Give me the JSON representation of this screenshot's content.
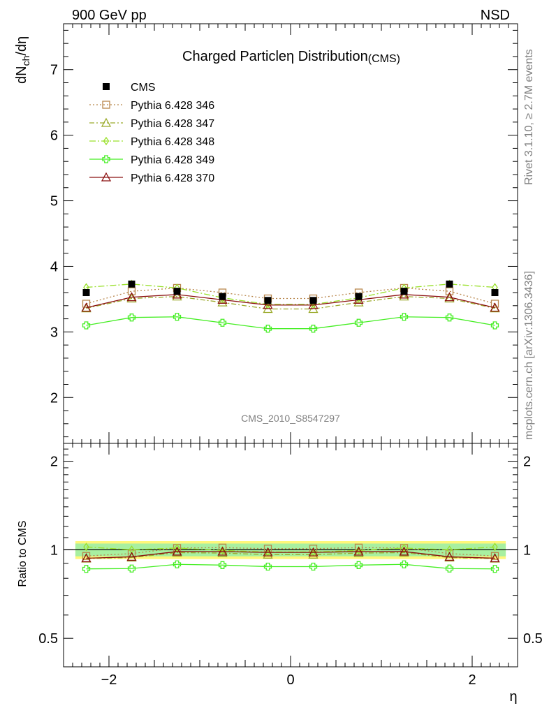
{
  "header": {
    "left": "900 GeV pp",
    "right": "NSD"
  },
  "side_labels": {
    "rivet": "Rivet 3.1.10, ≥ 2.7M events",
    "mcplots": "mcplots.cern.ch [arXiv:1306.3436]"
  },
  "chart_data": {
    "type": "line",
    "title": "Charged Particleη Distribution",
    "title_suffix": "(CMS)",
    "watermark": "CMS_2010_S8547297",
    "xlabel": "η",
    "xlim": [
      -2.5,
      2.5
    ],
    "x_ticks": [
      -2,
      0,
      2
    ],
    "x_tick_labels": [
      "−2",
      "0",
      "2"
    ],
    "ylabel_main": "dN",
    "ylabel_sub": "ch",
    "ylabel_rest": "/dη",
    "ylim_main": [
      1.3,
      7.7
    ],
    "y_ticks_main": [
      2,
      3,
      4,
      5,
      6,
      7
    ],
    "ratio_label": "Ratio to CMS",
    "ylim_ratio": [
      0.4,
      2.3
    ],
    "y_ticks_ratio": [
      0.5,
      1,
      2
    ],
    "legend_position": "top-left",
    "x": [
      -2.25,
      -1.75,
      -1.25,
      -0.75,
      -0.25,
      0.25,
      0.75,
      1.25,
      1.75,
      2.25
    ],
    "data": {
      "name": "CMS",
      "color": "#000000",
      "values": [
        3.6,
        3.73,
        3.62,
        3.54,
        3.48,
        3.48,
        3.54,
        3.62,
        3.73,
        3.6
      ],
      "band_inner": 0.05,
      "band_outer": 0.07
    },
    "series": [
      {
        "name": "Pythia 6.428 346",
        "color": "#b8864b",
        "dash": "2,3",
        "marker": "square",
        "values": [
          3.43,
          3.62,
          3.67,
          3.6,
          3.51,
          3.51,
          3.6,
          3.67,
          3.62,
          3.43
        ]
      },
      {
        "name": "Pythia 6.428 347",
        "color": "#9aaa2a",
        "dash": "7,3,2,3",
        "marker": "triangle",
        "values": [
          3.36,
          3.51,
          3.54,
          3.45,
          3.35,
          3.35,
          3.45,
          3.54,
          3.51,
          3.36
        ]
      },
      {
        "name": "Pythia 6.428 348",
        "color": "#99e02a",
        "dash": "9,3,2,3",
        "marker": "diamond",
        "values": [
          3.68,
          3.73,
          3.67,
          3.52,
          3.42,
          3.42,
          3.52,
          3.67,
          3.73,
          3.68
        ]
      },
      {
        "name": "Pythia 6.428 349",
        "color": "#44ee22",
        "dash": "",
        "marker": "cross",
        "values": [
          3.1,
          3.22,
          3.23,
          3.14,
          3.05,
          3.05,
          3.14,
          3.23,
          3.22,
          3.1
        ]
      },
      {
        "name": "Pythia 6.428 370",
        "color": "#8b1010",
        "dash": "",
        "marker": "triangle",
        "values": [
          3.37,
          3.53,
          3.57,
          3.49,
          3.41,
          3.41,
          3.49,
          3.57,
          3.53,
          3.37
        ]
      }
    ]
  }
}
